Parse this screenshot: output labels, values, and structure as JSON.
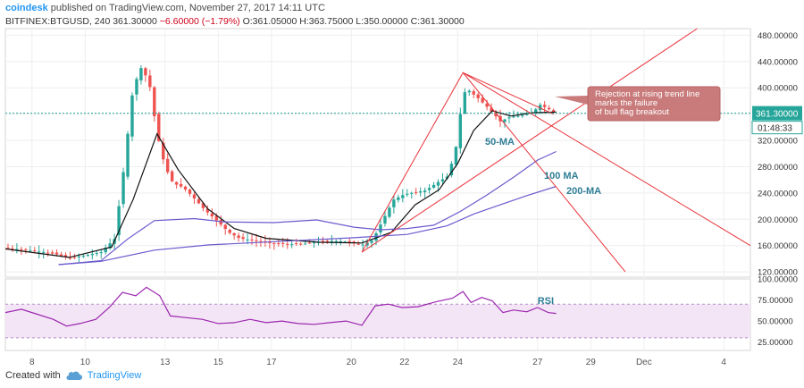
{
  "header": {
    "brand": "coindesk",
    "published": "published on TradingView.com, November 27, 2017 14:11 UTC",
    "symbol": "BITFINEX:BTGUSD, 240",
    "last": "361.30000",
    "change": "−6.60000 (−1.79%)",
    "ohlc": "O:361.05000 H:363.75000 L:350.00000 C:361.30000"
  },
  "footer": {
    "created_with": "Created with",
    "tradingview": "TradingView"
  },
  "colors": {
    "up": "#26a69a",
    "down": "#ef5350",
    "ma50": "#111111",
    "ma100": "#6a5acd",
    "ma200": "#6a5acd",
    "trend": "#e8333a",
    "rsi": "#9c27b0",
    "rsi_band": "#f3e5f5",
    "price_label": "#26a69a",
    "annotation_bg": "#c97b7b"
  },
  "chart_data": [
    {
      "type": "candlestick",
      "title": "",
      "ylim": [
        112,
        490
      ],
      "y_ticks": [
        "480.00000",
        "440.00000",
        "400.00000",
        "360.00000",
        "320.00000",
        "280.00000",
        "240.00000",
        "200.00000",
        "160.00000",
        "120.00000"
      ],
      "x_tick_labels": [
        "8",
        "10",
        "13",
        "15",
        "17",
        "20",
        "22",
        "24",
        "27",
        "29",
        "Dec",
        "4"
      ],
      "x_tick_days": [
        8,
        10,
        13,
        15,
        17,
        20,
        22,
        24,
        27,
        29,
        31,
        34
      ],
      "x_range_days": [
        7.0,
        35.0
      ],
      "last_price": "361.30000",
      "countdown": "01:48:33",
      "close_path": [
        [
          7.0,
          157
        ],
        [
          7.8,
          153
        ],
        [
          8.5,
          150
        ],
        [
          9.0,
          146
        ],
        [
          9.4,
          141
        ],
        [
          10.0,
          145
        ],
        [
          10.6,
          150
        ],
        [
          11.1,
          170
        ],
        [
          11.4,
          260
        ],
        [
          11.8,
          400
        ],
        [
          12.1,
          430
        ],
        [
          12.4,
          410
        ],
        [
          12.7,
          330
        ],
        [
          13.0,
          280
        ],
        [
          13.3,
          255
        ],
        [
          13.7,
          248
        ],
        [
          14.0,
          236
        ],
        [
          14.5,
          214
        ],
        [
          15.0,
          196
        ],
        [
          15.4,
          180
        ],
        [
          15.8,
          171
        ],
        [
          16.3,
          168
        ],
        [
          16.8,
          164
        ],
        [
          17.3,
          163
        ],
        [
          17.8,
          162
        ],
        [
          18.3,
          163
        ],
        [
          18.8,
          166
        ],
        [
          19.3,
          167
        ],
        [
          19.8,
          166
        ],
        [
          20.4,
          161
        ],
        [
          20.8,
          168
        ],
        [
          21.2,
          200
        ],
        [
          21.6,
          230
        ],
        [
          22.0,
          238
        ],
        [
          22.4,
          241
        ],
        [
          22.8,
          244
        ],
        [
          23.2,
          255
        ],
        [
          23.6,
          265
        ],
        [
          23.9,
          300
        ],
        [
          24.1,
          360
        ],
        [
          24.3,
          400
        ],
        [
          24.5,
          393
        ],
        [
          24.8,
          383
        ],
        [
          25.2,
          367
        ],
        [
          25.6,
          349
        ],
        [
          26.0,
          356
        ],
        [
          26.4,
          358
        ],
        [
          26.8,
          362
        ],
        [
          27.1,
          374
        ],
        [
          27.4,
          368
        ],
        [
          27.7,
          361.3
        ]
      ],
      "ma_lines": [
        {
          "name": "50-MA",
          "points": [
            [
              7.0,
              155
            ],
            [
              9.4,
              142
            ],
            [
              11.0,
              158
            ],
            [
              11.8,
              230
            ],
            [
              12.7,
              330
            ],
            [
              13.5,
              275
            ],
            [
              14.6,
              216
            ],
            [
              15.6,
              186
            ],
            [
              16.8,
              171
            ],
            [
              18.8,
              165
            ],
            [
              20.4,
              164
            ],
            [
              21.5,
              180
            ],
            [
              22.4,
              222
            ],
            [
              23.3,
              245
            ],
            [
              24.0,
              285
            ],
            [
              24.6,
              335
            ],
            [
              25.3,
              365
            ],
            [
              26.0,
              357
            ],
            [
              26.8,
              362
            ],
            [
              27.7,
              363
            ]
          ]
        },
        {
          "name": "100-MA",
          "points": [
            [
              9.0,
              131
            ],
            [
              10.6,
              137
            ],
            [
              11.6,
              170
            ],
            [
              12.6,
              198
            ],
            [
              14.1,
              201
            ],
            [
              15.2,
              196
            ],
            [
              17.1,
              195
            ],
            [
              18.7,
              199
            ],
            [
              20.1,
              188
            ],
            [
              21.1,
              184
            ],
            [
              22.1,
              186
            ],
            [
              23.1,
              191
            ],
            [
              24.1,
              212
            ],
            [
              25.1,
              237
            ],
            [
              26.1,
              264
            ],
            [
              27.0,
              290
            ],
            [
              27.7,
              303
            ]
          ]
        },
        {
          "name": "200-MA",
          "points": [
            [
              9.0,
              131
            ],
            [
              10.6,
              136
            ],
            [
              12.6,
              153
            ],
            [
              14.6,
              161
            ],
            [
              17.1,
              166
            ],
            [
              20.1,
              172
            ],
            [
              22.1,
              177
            ],
            [
              23.6,
              190
            ],
            [
              24.6,
              208
            ],
            [
              25.6,
              222
            ],
            [
              26.6,
              236
            ],
            [
              27.7,
              250
            ]
          ]
        }
      ],
      "annotations": [
        {
          "name": "annotation-rejection",
          "text": "Rejection at rising trend line marks the failure of bull flag breakout",
          "lines": [
            "Rejection at rising trend line",
            "marks the failure",
            "of bull flag breakout"
          ]
        },
        {
          "name": "label-50ma",
          "text": "50-MA"
        },
        {
          "name": "label-100ma",
          "text": "100 MA"
        },
        {
          "name": "label-200ma",
          "text": "200-MA"
        }
      ]
    },
    {
      "type": "line",
      "title": "",
      "series": [
        {
          "name": "RSI",
          "points": [
            [
              7.0,
              60
            ],
            [
              7.6,
              64
            ],
            [
              8.2,
              58
            ],
            [
              8.8,
              52
            ],
            [
              9.3,
              44
            ],
            [
              9.8,
              47
            ],
            [
              10.4,
              52
            ],
            [
              10.9,
              66
            ],
            [
              11.4,
              84
            ],
            [
              11.9,
              80
            ],
            [
              12.3,
              90
            ],
            [
              12.8,
              80
            ],
            [
              13.2,
              56
            ],
            [
              13.8,
              54
            ],
            [
              14.4,
              52
            ],
            [
              15.0,
              47
            ],
            [
              15.6,
              48
            ],
            [
              16.2,
              52
            ],
            [
              16.8,
              48
            ],
            [
              17.4,
              50
            ],
            [
              18.0,
              47
            ],
            [
              18.6,
              46
            ],
            [
              19.2,
              48
            ],
            [
              19.8,
              50
            ],
            [
              20.4,
              45
            ],
            [
              20.9,
              68
            ],
            [
              21.4,
              70
            ],
            [
              21.9,
              66
            ],
            [
              22.5,
              67
            ],
            [
              23.2,
              73
            ],
            [
              23.8,
              77
            ],
            [
              24.2,
              85
            ],
            [
              24.5,
              72
            ],
            [
              24.9,
              78
            ],
            [
              25.3,
              74
            ],
            [
              25.7,
              60
            ],
            [
              26.1,
              63
            ],
            [
              26.6,
              61
            ],
            [
              27.0,
              66
            ],
            [
              27.4,
              60
            ],
            [
              27.7,
              59
            ]
          ]
        }
      ],
      "ylim": [
        15,
        100
      ],
      "y_ticks": [
        "100.00000",
        "75.00000",
        "50.00000",
        "25.00000"
      ],
      "band": [
        30,
        70
      ],
      "label": "RSI"
    }
  ]
}
